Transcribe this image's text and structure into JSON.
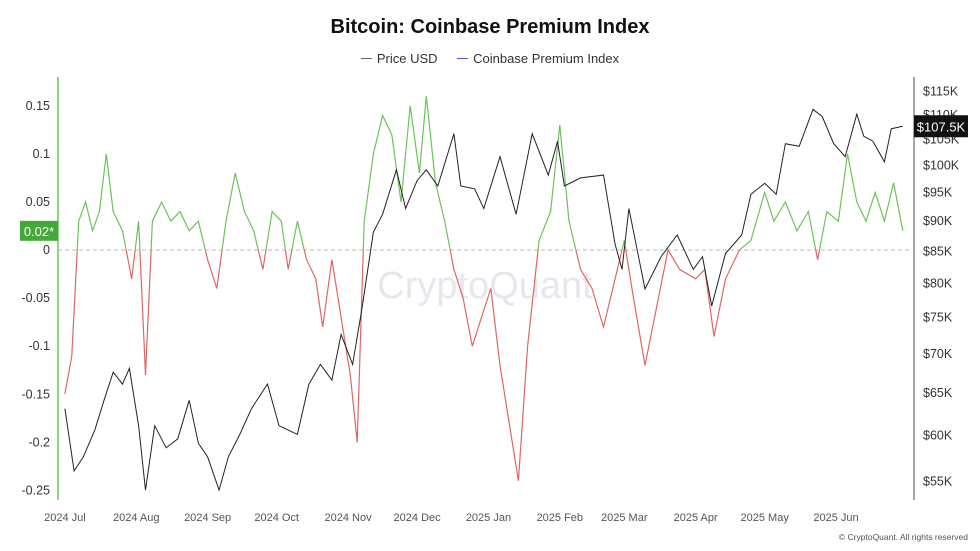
{
  "chart_data": {
    "type": "line",
    "title": "Bitcoin: Coinbase Premium Index",
    "legend": [
      "Price USD",
      "Coinbase Premium Index"
    ],
    "legend_placement": "top-center",
    "colors": {
      "price": "#222222",
      "premium_positive": "#6cc35a",
      "premium_negative": "#e06666",
      "legend_premium": "#5b4fc9",
      "axis_left": "#6cc35a"
    },
    "left_axis": {
      "ticks": [
        "0.15",
        "0.1",
        "0.05",
        "0",
        "-0.05",
        "-0.1",
        "-0.15",
        "-0.2",
        "-0.25"
      ],
      "range": [
        -0.26,
        0.18
      ]
    },
    "right_axis": {
      "scale": "log",
      "ticks": [
        "$115K",
        "$110K",
        "$105K",
        "$100K",
        "$95K",
        "$90K",
        "$85K",
        "$80K",
        "$75K",
        "$70K",
        "$65K",
        "$60K",
        "$55K"
      ],
      "range": [
        53000,
        118000
      ]
    },
    "x_ticks": [
      "2024 Jul",
      "2024 Aug",
      "2024 Sep",
      "2024 Oct",
      "2024 Nov",
      "2024 Dec",
      "2025 Jan",
      "2025 Feb",
      "2025 Mar",
      "2025 Apr",
      "2025 May",
      "2025 Jun"
    ],
    "x_tick_dates": [
      "2024-07-01",
      "2024-08-01",
      "2024-09-01",
      "2024-10-01",
      "2024-11-01",
      "2024-12-01",
      "2025-01-01",
      "2025-02-01",
      "2025-03-01",
      "2025-04-01",
      "2025-05-01",
      "2025-06-01"
    ],
    "x_range": [
      "2024-06-28",
      "2025-07-04"
    ],
    "current_premium_label": "0.02*",
    "current_price_label": "$107.5K",
    "series": [
      {
        "name": "Price USD",
        "axis": "right",
        "points": [
          [
            "2024-07-01",
            63000
          ],
          [
            "2024-07-05",
            56000
          ],
          [
            "2024-07-09",
            57500
          ],
          [
            "2024-07-14",
            60500
          ],
          [
            "2024-07-18",
            64000
          ],
          [
            "2024-07-22",
            67500
          ],
          [
            "2024-07-26",
            66000
          ],
          [
            "2024-07-29",
            68000
          ],
          [
            "2024-08-02",
            61000
          ],
          [
            "2024-08-05",
            54000
          ],
          [
            "2024-08-09",
            61000
          ],
          [
            "2024-08-14",
            58500
          ],
          [
            "2024-08-19",
            59500
          ],
          [
            "2024-08-24",
            64000
          ],
          [
            "2024-08-28",
            59000
          ],
          [
            "2024-09-01",
            57500
          ],
          [
            "2024-09-06",
            54000
          ],
          [
            "2024-09-10",
            57500
          ],
          [
            "2024-09-15",
            60000
          ],
          [
            "2024-09-20",
            63000
          ],
          [
            "2024-09-27",
            66000
          ],
          [
            "2024-10-02",
            61000
          ],
          [
            "2024-10-10",
            60000
          ],
          [
            "2024-10-15",
            66000
          ],
          [
            "2024-10-20",
            68500
          ],
          [
            "2024-10-25",
            66500
          ],
          [
            "2024-10-29",
            72500
          ],
          [
            "2024-11-03",
            68500
          ],
          [
            "2024-11-07",
            76000
          ],
          [
            "2024-11-12",
            88000
          ],
          [
            "2024-11-16",
            91000
          ],
          [
            "2024-11-22",
            99000
          ],
          [
            "2024-11-26",
            92000
          ],
          [
            "2024-12-01",
            97000
          ],
          [
            "2024-12-05",
            99000
          ],
          [
            "2024-12-10",
            96000
          ],
          [
            "2024-12-17",
            106000
          ],
          [
            "2024-12-20",
            96000
          ],
          [
            "2024-12-26",
            95500
          ],
          [
            "2024-12-30",
            92000
          ],
          [
            "2025-01-06",
            101500
          ],
          [
            "2025-01-13",
            91000
          ],
          [
            "2025-01-20",
            106000
          ],
          [
            "2025-01-27",
            98000
          ],
          [
            "2025-01-31",
            104500
          ],
          [
            "2025-02-03",
            96000
          ],
          [
            "2025-02-10",
            97500
          ],
          [
            "2025-02-20",
            98000
          ],
          [
            "2025-02-25",
            86000
          ],
          [
            "2025-02-28",
            82000
          ],
          [
            "2025-03-03",
            92000
          ],
          [
            "2025-03-10",
            79000
          ],
          [
            "2025-03-17",
            84000
          ],
          [
            "2025-03-24",
            87500
          ],
          [
            "2025-03-31",
            82000
          ],
          [
            "2025-04-04",
            84000
          ],
          [
            "2025-04-08",
            76500
          ],
          [
            "2025-04-14",
            84500
          ],
          [
            "2025-04-21",
            87500
          ],
          [
            "2025-04-25",
            94500
          ],
          [
            "2025-05-01",
            96500
          ],
          [
            "2025-05-06",
            94500
          ],
          [
            "2025-05-10",
            104000
          ],
          [
            "2025-05-16",
            103500
          ],
          [
            "2025-05-22",
            111000
          ],
          [
            "2025-05-26",
            109500
          ],
          [
            "2025-05-31",
            104000
          ],
          [
            "2025-06-05",
            101500
          ],
          [
            "2025-06-10",
            110000
          ],
          [
            "2025-06-13",
            105500
          ],
          [
            "2025-06-17",
            104500
          ],
          [
            "2025-06-22",
            100500
          ],
          [
            "2025-06-25",
            107000
          ],
          [
            "2025-06-30",
            107500
          ]
        ]
      },
      {
        "name": "Coinbase Premium Index",
        "axis": "left",
        "points": [
          [
            "2024-07-01",
            -0.15
          ],
          [
            "2024-07-04",
            -0.11
          ],
          [
            "2024-07-07",
            0.03
          ],
          [
            "2024-07-10",
            0.05
          ],
          [
            "2024-07-13",
            0.02
          ],
          [
            "2024-07-16",
            0.04
          ],
          [
            "2024-07-19",
            0.1
          ],
          [
            "2024-07-22",
            0.04
          ],
          [
            "2024-07-26",
            0.02
          ],
          [
            "2024-07-30",
            -0.03
          ],
          [
            "2024-08-02",
            0.03
          ],
          [
            "2024-08-05",
            -0.13
          ],
          [
            "2024-08-08",
            0.03
          ],
          [
            "2024-08-12",
            0.05
          ],
          [
            "2024-08-16",
            0.03
          ],
          [
            "2024-08-20",
            0.04
          ],
          [
            "2024-08-24",
            0.02
          ],
          [
            "2024-08-28",
            0.03
          ],
          [
            "2024-09-01",
            -0.01
          ],
          [
            "2024-09-05",
            -0.04
          ],
          [
            "2024-09-09",
            0.03
          ],
          [
            "2024-09-13",
            0.08
          ],
          [
            "2024-09-17",
            0.04
          ],
          [
            "2024-09-21",
            0.02
          ],
          [
            "2024-09-25",
            -0.02
          ],
          [
            "2024-09-29",
            0.04
          ],
          [
            "2024-10-03",
            0.03
          ],
          [
            "2024-10-06",
            -0.02
          ],
          [
            "2024-10-10",
            0.03
          ],
          [
            "2024-10-14",
            -0.01
          ],
          [
            "2024-10-18",
            -0.03
          ],
          [
            "2024-10-21",
            -0.08
          ],
          [
            "2024-10-25",
            -0.01
          ],
          [
            "2024-10-29",
            -0.07
          ],
          [
            "2024-11-02",
            -0.13
          ],
          [
            "2024-11-05",
            -0.2
          ],
          [
            "2024-11-08",
            0.03
          ],
          [
            "2024-11-12",
            0.1
          ],
          [
            "2024-11-16",
            0.14
          ],
          [
            "2024-11-20",
            0.12
          ],
          [
            "2024-11-24",
            0.05
          ],
          [
            "2024-11-28",
            0.15
          ],
          [
            "2024-12-02",
            0.08
          ],
          [
            "2024-12-05",
            0.16
          ],
          [
            "2024-12-09",
            0.07
          ],
          [
            "2024-12-13",
            0.03
          ],
          [
            "2024-12-17",
            -0.02
          ],
          [
            "2024-12-21",
            -0.05
          ],
          [
            "2024-12-25",
            -0.1
          ],
          [
            "2024-12-29",
            -0.07
          ],
          [
            "2025-01-02",
            -0.04
          ],
          [
            "2025-01-06",
            -0.12
          ],
          [
            "2025-01-10",
            -0.18
          ],
          [
            "2025-01-14",
            -0.24
          ],
          [
            "2025-01-18",
            -0.1
          ],
          [
            "2025-01-23",
            0.01
          ],
          [
            "2025-01-28",
            0.04
          ],
          [
            "2025-02-01",
            0.13
          ],
          [
            "2025-02-05",
            0.03
          ],
          [
            "2025-02-10",
            -0.02
          ],
          [
            "2025-02-15",
            -0.04
          ],
          [
            "2025-02-20",
            -0.08
          ],
          [
            "2025-02-25",
            -0.03
          ],
          [
            "2025-03-01",
            0.01
          ],
          [
            "2025-03-05",
            -0.05
          ],
          [
            "2025-03-10",
            -0.12
          ],
          [
            "2025-03-15",
            -0.06
          ],
          [
            "2025-03-20",
            0.0
          ],
          [
            "2025-03-25",
            -0.02
          ],
          [
            "2025-04-01",
            -0.03
          ],
          [
            "2025-04-05",
            -0.02
          ],
          [
            "2025-04-09",
            -0.09
          ],
          [
            "2025-04-14",
            -0.03
          ],
          [
            "2025-04-20",
            0.0
          ],
          [
            "2025-04-25",
            0.01
          ],
          [
            "2025-05-01",
            0.06
          ],
          [
            "2025-05-05",
            0.03
          ],
          [
            "2025-05-10",
            0.05
          ],
          [
            "2025-05-15",
            0.02
          ],
          [
            "2025-05-20",
            0.04
          ],
          [
            "2025-05-24",
            -0.01
          ],
          [
            "2025-05-28",
            0.04
          ],
          [
            "2025-06-02",
            0.03
          ],
          [
            "2025-06-06",
            0.1
          ],
          [
            "2025-06-10",
            0.05
          ],
          [
            "2025-06-14",
            0.03
          ],
          [
            "2025-06-18",
            0.06
          ],
          [
            "2025-06-22",
            0.03
          ],
          [
            "2025-06-26",
            0.07
          ],
          [
            "2025-06-30",
            0.02
          ]
        ]
      }
    ]
  },
  "watermark": "CryptoQuant",
  "footer": "© CryptoQuant. All rights reserved"
}
